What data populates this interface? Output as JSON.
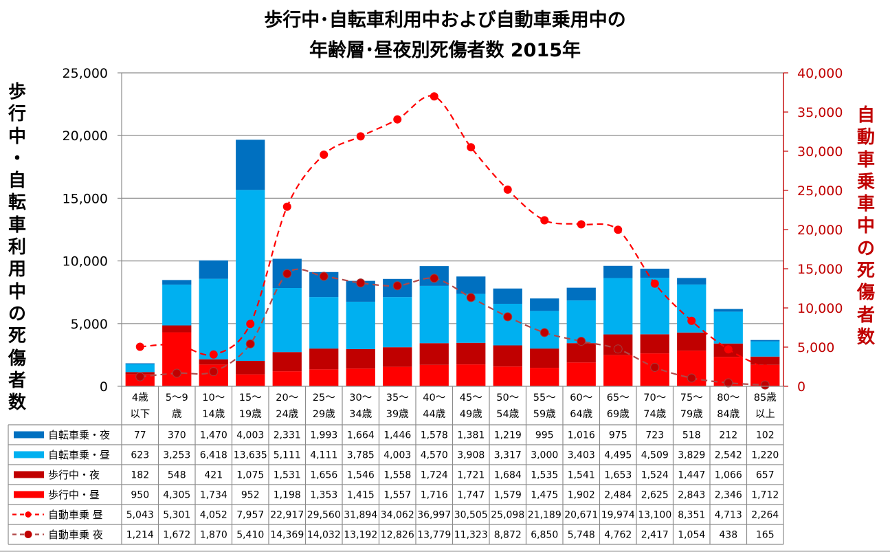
{
  "chart_data": {
    "type": "bar",
    "subtype": "stacked-bar-with-secondary-line",
    "title_lines": [
      "歩行中･自転車利用中および自動車乗用中の",
      "年齢層･昼夜別死傷者数  2015年"
    ],
    "ylabel": "歩行中・自転車利用中の死傷者数",
    "ylabel_right": "自動車乗車中の死傷者数",
    "ylim": [
      0,
      25000
    ],
    "ylim_right": [
      0,
      40000
    ],
    "yticks": [
      "0",
      "5,000",
      "10,000",
      "15,000",
      "20,000",
      "25,000"
    ],
    "yticks_right": [
      "0",
      "5,000",
      "10,000",
      "15,000",
      "20,000",
      "25,000",
      "30,000",
      "35,000",
      "40,000"
    ],
    "grid": true,
    "legend_placement": "data-table-bottom",
    "categories": [
      [
        "4歳",
        "以下"
      ],
      [
        "5〜9",
        "歳"
      ],
      [
        "10〜",
        "14歳"
      ],
      [
        "15〜",
        "19歳"
      ],
      [
        "20〜",
        "24歳"
      ],
      [
        "25〜",
        "29歳"
      ],
      [
        "30〜",
        "34歳"
      ],
      [
        "35〜",
        "39歳"
      ],
      [
        "40〜",
        "44歳"
      ],
      [
        "45〜",
        "49歳"
      ],
      [
        "50〜",
        "54歳"
      ],
      [
        "55〜",
        "59歳"
      ],
      [
        "60〜",
        "64歳"
      ],
      [
        "65〜",
        "69歳"
      ],
      [
        "70〜",
        "74歳"
      ],
      [
        "75〜",
        "79歳"
      ],
      [
        "80〜",
        "84歳"
      ],
      [
        "85歳",
        "以上"
      ]
    ],
    "series": [
      {
        "name": "自転車乗・夜",
        "kind": "bar",
        "axis": "left",
        "color": "#0070c0",
        "values": [
          77,
          370,
          1470,
          4003,
          2331,
          1993,
          1664,
          1446,
          1578,
          1381,
          1219,
          995,
          1016,
          975,
          723,
          518,
          212,
          102
        ],
        "labels": [
          "77",
          "370",
          "1,470",
          "4,003",
          "2,331",
          "1,993",
          "1,664",
          "1,446",
          "1,578",
          "1,381",
          "1,219",
          "995",
          "1,016",
          "975",
          "723",
          "518",
          "212",
          "102"
        ]
      },
      {
        "name": "自転車乗・昼",
        "kind": "bar",
        "axis": "left",
        "color": "#00b0f0",
        "values": [
          623,
          3253,
          6418,
          13635,
          5111,
          4111,
          3785,
          4003,
          4570,
          3908,
          3317,
          3000,
          3403,
          4495,
          4509,
          3829,
          2542,
          1220
        ],
        "labels": [
          "623",
          "3,253",
          "6,418",
          "13,635",
          "5,111",
          "4,111",
          "3,785",
          "4,003",
          "4,570",
          "3,908",
          "3,317",
          "3,000",
          "3,403",
          "4,495",
          "4,509",
          "3,829",
          "2,542",
          "1,220"
        ]
      },
      {
        "name": "歩行中・夜",
        "kind": "bar",
        "axis": "left",
        "color": "#c00000",
        "values": [
          182,
          548,
          421,
          1075,
          1531,
          1656,
          1546,
          1558,
          1724,
          1721,
          1684,
          1535,
          1541,
          1653,
          1524,
          1447,
          1066,
          657
        ],
        "labels": [
          "182",
          "548",
          "421",
          "1,075",
          "1,531",
          "1,656",
          "1,546",
          "1,558",
          "1,724",
          "1,721",
          "1,684",
          "1,535",
          "1,541",
          "1,653",
          "1,524",
          "1,447",
          "1,066",
          "657"
        ]
      },
      {
        "name": "歩行中・昼",
        "kind": "bar",
        "axis": "left",
        "color": "#ff0000",
        "values": [
          950,
          4305,
          1734,
          952,
          1198,
          1353,
          1415,
          1557,
          1716,
          1747,
          1579,
          1475,
          1902,
          2484,
          2625,
          2843,
          2346,
          1712
        ],
        "labels": [
          "950",
          "4,305",
          "1,734",
          "952",
          "1,198",
          "1,353",
          "1,415",
          "1,557",
          "1,716",
          "1,747",
          "1,579",
          "1,475",
          "1,902",
          "2,484",
          "2,625",
          "2,843",
          "2,346",
          "1,712"
        ]
      },
      {
        "name": "自動車乗 昼",
        "kind": "line",
        "axis": "right",
        "color": "#ff0000",
        "values": [
          5043,
          5301,
          4052,
          7957,
          22917,
          29560,
          31894,
          34062,
          36997,
          30505,
          25098,
          21189,
          20671,
          19974,
          13100,
          8351,
          4713,
          2264
        ],
        "labels": [
          "5,043",
          "5,301",
          "4,052",
          "7,957",
          "22,917",
          "29,560",
          "31,894",
          "34,062",
          "36,997",
          "30,505",
          "25,098",
          "21,189",
          "20,671",
          "19,974",
          "13,100",
          "8,351",
          "4,713",
          "2,264"
        ]
      },
      {
        "name": "自動車乗 夜",
        "kind": "line",
        "axis": "right",
        "color": "#c00000",
        "values": [
          1214,
          1672,
          1870,
          5410,
          14369,
          14032,
          13192,
          12826,
          13779,
          11323,
          8872,
          6850,
          5748,
          4762,
          2417,
          1054,
          438,
          165
        ],
        "labels": [
          "1,214",
          "1,672",
          "1,870",
          "5,410",
          "14,369",
          "14,032",
          "13,192",
          "12,826",
          "13,779",
          "11,323",
          "8,872",
          "6,850",
          "5,748",
          "4,762",
          "2,417",
          "1,054",
          "438",
          "165"
        ]
      }
    ],
    "stack_order_bottom_to_top": [
      "歩行中・昼",
      "歩行中・夜",
      "自転車乗・昼",
      "自転車乗・夜"
    ]
  }
}
